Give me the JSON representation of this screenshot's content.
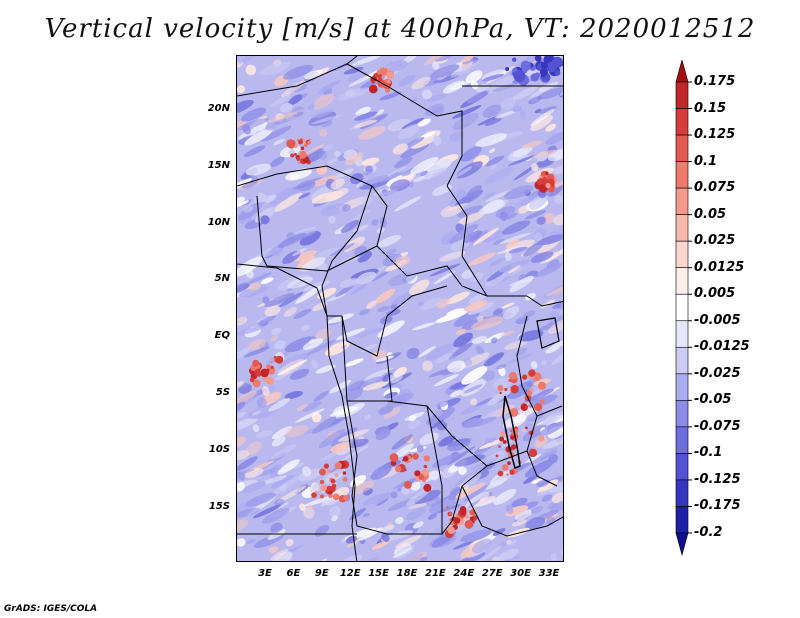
{
  "title": "Vertical velocity [m/s] at 400hPa, VT: 2020012512",
  "credit": "GrADS: IGES/COLA",
  "map": {
    "lat_labels": [
      "20N",
      "15N",
      "10N",
      "5N",
      "EQ",
      "5S",
      "10S",
      "15S"
    ],
    "lon_labels": [
      "3E",
      "6E",
      "9E",
      "12E",
      "15E",
      "18E",
      "21E",
      "24E",
      "27E",
      "30E",
      "33E"
    ]
  },
  "colorbar": {
    "levels": [
      "0.175",
      "0.15",
      "0.125",
      "0.1",
      "0.075",
      "0.05",
      "0.025",
      "0.0125",
      "0.005",
      "-0.005",
      "-0.0125",
      "-0.025",
      "-0.05",
      "-0.075",
      "-0.1",
      "-0.125",
      "-0.175",
      "-0.2"
    ],
    "colors": [
      "#a50f15",
      "#c0262a",
      "#d43d3b",
      "#e25a51",
      "#ec7a6d",
      "#f39a8c",
      "#f8b8ad",
      "#fcd6cf",
      "#fdeeea",
      "#ffffff",
      "#e6e6fb",
      "#ccccf5",
      "#ababf0",
      "#8c8ce8",
      "#6d6de0",
      "#5252d2",
      "#3636c0",
      "#1f1fa8",
      "#0f0f8c"
    ]
  },
  "colors": {
    "blue_field": "#8c8ce8",
    "red_field": "#e25a51",
    "border_line": "#000000"
  }
}
